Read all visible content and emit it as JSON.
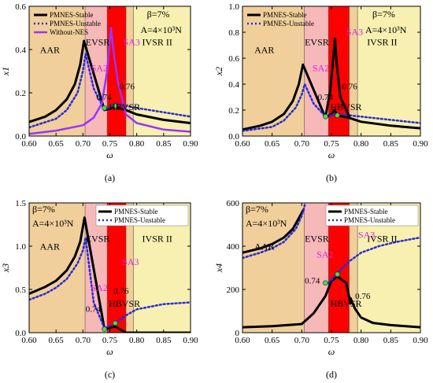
{
  "chart_data": [
    {
      "type": "line",
      "panel": "a",
      "caption": "(a)",
      "xlabel": "ω",
      "ylabel": "x1",
      "xlim": [
        0.6,
        0.9
      ],
      "ylim": [
        0,
        0.6
      ],
      "xticks": [
        "0.60",
        "0.65",
        "0.70",
        "0.75",
        "0.80",
        "0.85",
        "0.90"
      ],
      "yticks": [
        "0.0",
        "0.2",
        "0.4",
        "0.6"
      ],
      "legend": [
        "PMNES-Stable",
        "PMNES-Unstable",
        "Without-NES"
      ],
      "legend_position": "top-left",
      "params": [
        "β=7%",
        "A=4×10³N"
      ],
      "regions": [
        {
          "label": "AAR",
          "x0": 0.6,
          "x1": 0.704,
          "color": "#f0cf9a"
        },
        {
          "label": "EVSR",
          "x0": 0.704,
          "x1": 0.745,
          "color": "#f7b8b8"
        },
        {
          "label": "HBVSR",
          "x0": 0.745,
          "x1": 0.78,
          "color": "#ff0000"
        },
        {
          "label": "",
          "x0": 0.78,
          "x1": 0.794,
          "color": "#f0cf9a"
        },
        {
          "label": "IVSR II",
          "x0": 0.794,
          "x1": 0.9,
          "color": "#f7f0b0"
        }
      ],
      "annotations": [
        "0.74",
        "0.76",
        "SA2",
        "SA3"
      ],
      "series": [
        {
          "name": "PMNES-Stable",
          "x": [
            0.6,
            0.63,
            0.65,
            0.67,
            0.685,
            0.695,
            0.702,
            0.74,
            0.76,
            0.78,
            0.8,
            0.85,
            0.9
          ],
          "y": [
            0.065,
            0.09,
            0.12,
            0.17,
            0.24,
            0.33,
            0.44,
            0.12,
            0.135,
            0.12,
            0.1,
            0.075,
            0.06
          ]
        },
        {
          "name": "PMNES-Unstable",
          "x": [
            0.6,
            0.65,
            0.67,
            0.69,
            0.7,
            0.705,
            0.72,
            0.74,
            0.76,
            0.8,
            0.9
          ],
          "y": [
            0.04,
            0.08,
            0.12,
            0.2,
            0.3,
            0.38,
            0.22,
            0.12,
            0.15,
            0.13,
            0.09
          ]
        },
        {
          "name": "Without-NES",
          "x": [
            0.6,
            0.65,
            0.7,
            0.72,
            0.735,
            0.745,
            0.752,
            0.758,
            0.765,
            0.78,
            0.8,
            0.85,
            0.9
          ],
          "y": [
            0.01,
            0.025,
            0.05,
            0.085,
            0.15,
            0.3,
            0.5,
            0.37,
            0.25,
            0.1,
            0.06,
            0.03,
            0.02
          ]
        }
      ],
      "points": [
        {
          "x": 0.74,
          "y": 0.13
        },
        {
          "x": 0.76,
          "y": 0.14
        }
      ]
    },
    {
      "type": "line",
      "panel": "b",
      "caption": "(b)",
      "xlabel": "ω",
      "ylabel": "x2",
      "xlim": [
        0.6,
        0.9
      ],
      "ylim": [
        0,
        1.0
      ],
      "xticks": [
        "0.60",
        "0.65",
        "0.70",
        "0.75",
        "0.80",
        "0.85",
        "0.90"
      ],
      "yticks": [
        "0.0",
        "0.2",
        "0.4",
        "0.6",
        "0.8",
        "1.0"
      ],
      "legend": [
        "PMNES-Stable",
        "PMNES-Unstable"
      ],
      "legend_position": "top-left",
      "params": [
        "β=7%",
        "A=4×10³N"
      ],
      "regions": [
        {
          "label": "AAR",
          "x0": 0.6,
          "x1": 0.704,
          "color": "#f0cf9a"
        },
        {
          "label": "EVSR",
          "x0": 0.704,
          "x1": 0.745,
          "color": "#f7b8b8"
        },
        {
          "label": "HBVSR",
          "x0": 0.745,
          "x1": 0.78,
          "color": "#ff0000"
        },
        {
          "label": "",
          "x0": 0.78,
          "x1": 0.794,
          "color": "#f0cf9a"
        },
        {
          "label": "IVSR II",
          "x0": 0.794,
          "x1": 0.9,
          "color": "#f7f0b0"
        }
      ],
      "annotations": [
        "0.74",
        "0.76",
        "SA2",
        "SA3"
      ],
      "series": [
        {
          "name": "PMNES-Stable",
          "x": [
            0.6,
            0.63,
            0.65,
            0.67,
            0.685,
            0.695,
            0.702,
            0.74,
            0.75,
            0.755,
            0.76,
            0.78,
            0.8,
            0.85,
            0.9
          ],
          "y": [
            0.05,
            0.08,
            0.11,
            0.17,
            0.27,
            0.4,
            0.55,
            0.14,
            0.17,
            0.2,
            0.16,
            0.14,
            0.11,
            0.08,
            0.06
          ]
        },
        {
          "name": "PMNES-Unstable",
          "x": [
            0.6,
            0.65,
            0.67,
            0.69,
            0.7,
            0.705,
            0.72,
            0.74,
            0.76,
            0.8,
            0.9
          ],
          "y": [
            0.04,
            0.07,
            0.12,
            0.22,
            0.32,
            0.4,
            0.25,
            0.15,
            0.17,
            0.15,
            0.1
          ]
        },
        {
          "name": "",
          "x": [
            0.74,
            0.748,
            0.753,
            0.756,
            0.759,
            0.765,
            0.78
          ],
          "y": [
            0.15,
            0.35,
            0.6,
            0.75,
            0.55,
            0.3,
            0.15
          ]
        }
      ],
      "points": [
        {
          "x": 0.74,
          "y": 0.15
        },
        {
          "x": 0.76,
          "y": 0.16
        }
      ]
    },
    {
      "type": "line",
      "panel": "c",
      "caption": "(c)",
      "xlabel": "ω",
      "ylabel": "x3",
      "xlim": [
        0.6,
        0.9
      ],
      "ylim": [
        0,
        1.5
      ],
      "xticks": [
        "0.60",
        "0.65",
        "0.70",
        "0.75",
        "0.80",
        "0.85",
        "0.90"
      ],
      "yticks": [
        "0.0",
        "0.5",
        "1.0",
        "1.5"
      ],
      "legend": [
        "PMNES-Stable",
        "PMNES-Unstable"
      ],
      "legend_position": "top-right",
      "params": [
        "β=7%",
        "A=4×10³N"
      ],
      "regions": [
        {
          "label": "AAR",
          "x0": 0.6,
          "x1": 0.704,
          "color": "#f0cf9a"
        },
        {
          "label": "EVSR",
          "x0": 0.704,
          "x1": 0.745,
          "color": "#f7b8b8"
        },
        {
          "label": "HBVSR",
          "x0": 0.745,
          "x1": 0.78,
          "color": "#ff0000"
        },
        {
          "label": "",
          "x0": 0.78,
          "x1": 0.794,
          "color": "#f0cf9a"
        },
        {
          "label": "IVSR II",
          "x0": 0.794,
          "x1": 0.9,
          "color": "#f7f0b0"
        }
      ],
      "annotations": [
        "0.74",
        "0.76",
        "SA2",
        "SA3"
      ],
      "series": [
        {
          "name": "PMNES-Stable",
          "x": [
            0.6,
            0.63,
            0.65,
            0.67,
            0.685,
            0.695,
            0.703,
            0.74,
            0.76,
            0.78,
            0.8,
            0.85,
            0.9
          ],
          "y": [
            0.45,
            0.53,
            0.6,
            0.72,
            0.88,
            1.05,
            1.33,
            0.04,
            0.07,
            0.0,
            0.0,
            0.0,
            0.0
          ]
        },
        {
          "name": "PMNES-Unstable",
          "x": [
            0.6,
            0.63,
            0.65,
            0.67,
            0.69,
            0.7,
            0.705,
            0.72,
            0.74,
            0.76,
            0.78,
            0.8,
            0.85,
            0.9
          ],
          "y": [
            0.38,
            0.45,
            0.52,
            0.62,
            0.8,
            0.95,
            1.1,
            0.35,
            0.05,
            0.11,
            0.2,
            0.27,
            0.33,
            0.35
          ]
        }
      ],
      "points": [
        {
          "x": 0.74,
          "y": 0.04
        },
        {
          "x": 0.76,
          "y": 0.11
        }
      ]
    },
    {
      "type": "line",
      "panel": "d",
      "caption": "(d)",
      "xlabel": "ω",
      "ylabel": "x4",
      "xlim": [
        0.6,
        0.9
      ],
      "ylim": [
        0,
        600
      ],
      "xticks": [
        "0.60",
        "0.65",
        "0.70",
        "0.75",
        "0.80",
        "0.85",
        "0.90"
      ],
      "yticks": [
        "0",
        "200",
        "400",
        "600"
      ],
      "legend": [
        "PMNES-Stable",
        "PMNES-Unstable"
      ],
      "legend_position": "top-right",
      "params": [
        "β=7%",
        "A=4×10³N"
      ],
      "regions": [
        {
          "label": "AAR",
          "x0": 0.6,
          "x1": 0.704,
          "color": "#f0cf9a"
        },
        {
          "label": "EVSR",
          "x0": 0.704,
          "x1": 0.745,
          "color": "#f7b8b8"
        },
        {
          "label": "HBVSR",
          "x0": 0.745,
          "x1": 0.78,
          "color": "#ff0000"
        },
        {
          "label": "",
          "x0": 0.78,
          "x1": 0.794,
          "color": "#f0cf9a"
        },
        {
          "label": "IVSR II",
          "x0": 0.794,
          "x1": 0.9,
          "color": "#f7f0b0"
        }
      ],
      "annotations": [
        "0.74",
        "0.76",
        "SA2",
        "SA3"
      ],
      "series": [
        {
          "name": "PMNES-Stable",
          "x": [
            0.6,
            0.63,
            0.65,
            0.67,
            0.685,
            0.695,
            0.703
          ],
          "y": [
            370,
            390,
            410,
            440,
            480,
            530,
            570
          ]
        },
        {
          "name": "PMNES-Stable",
          "x": [
            0.6,
            0.65,
            0.7,
            0.72,
            0.74,
            0.75,
            0.76,
            0.775,
            0.782
          ],
          "y": [
            25,
            30,
            40,
            90,
            170,
            240,
            260,
            230,
            135
          ]
        },
        {
          "name": "PMNES-Stable",
          "x": [
            0.782,
            0.79,
            0.8,
            0.82,
            0.85,
            0.9
          ],
          "y": [
            160,
            110,
            70,
            45,
            35,
            25
          ]
        },
        {
          "name": "PMNES-Unstable",
          "x": [
            0.6,
            0.63,
            0.65,
            0.67,
            0.69,
            0.7,
            0.705
          ],
          "y": [
            345,
            370,
            390,
            420,
            480,
            540,
            590
          ]
        },
        {
          "name": "PMNES-Unstable",
          "x": [
            0.745,
            0.755,
            0.765,
            0.78,
            0.8,
            0.83,
            0.86,
            0.9
          ],
          "y": [
            230,
            260,
            290,
            330,
            370,
            400,
            420,
            440
          ]
        }
      ],
      "points": [
        {
          "x": 0.74,
          "y": 230
        },
        {
          "x": 0.76,
          "y": 270
        }
      ]
    }
  ]
}
